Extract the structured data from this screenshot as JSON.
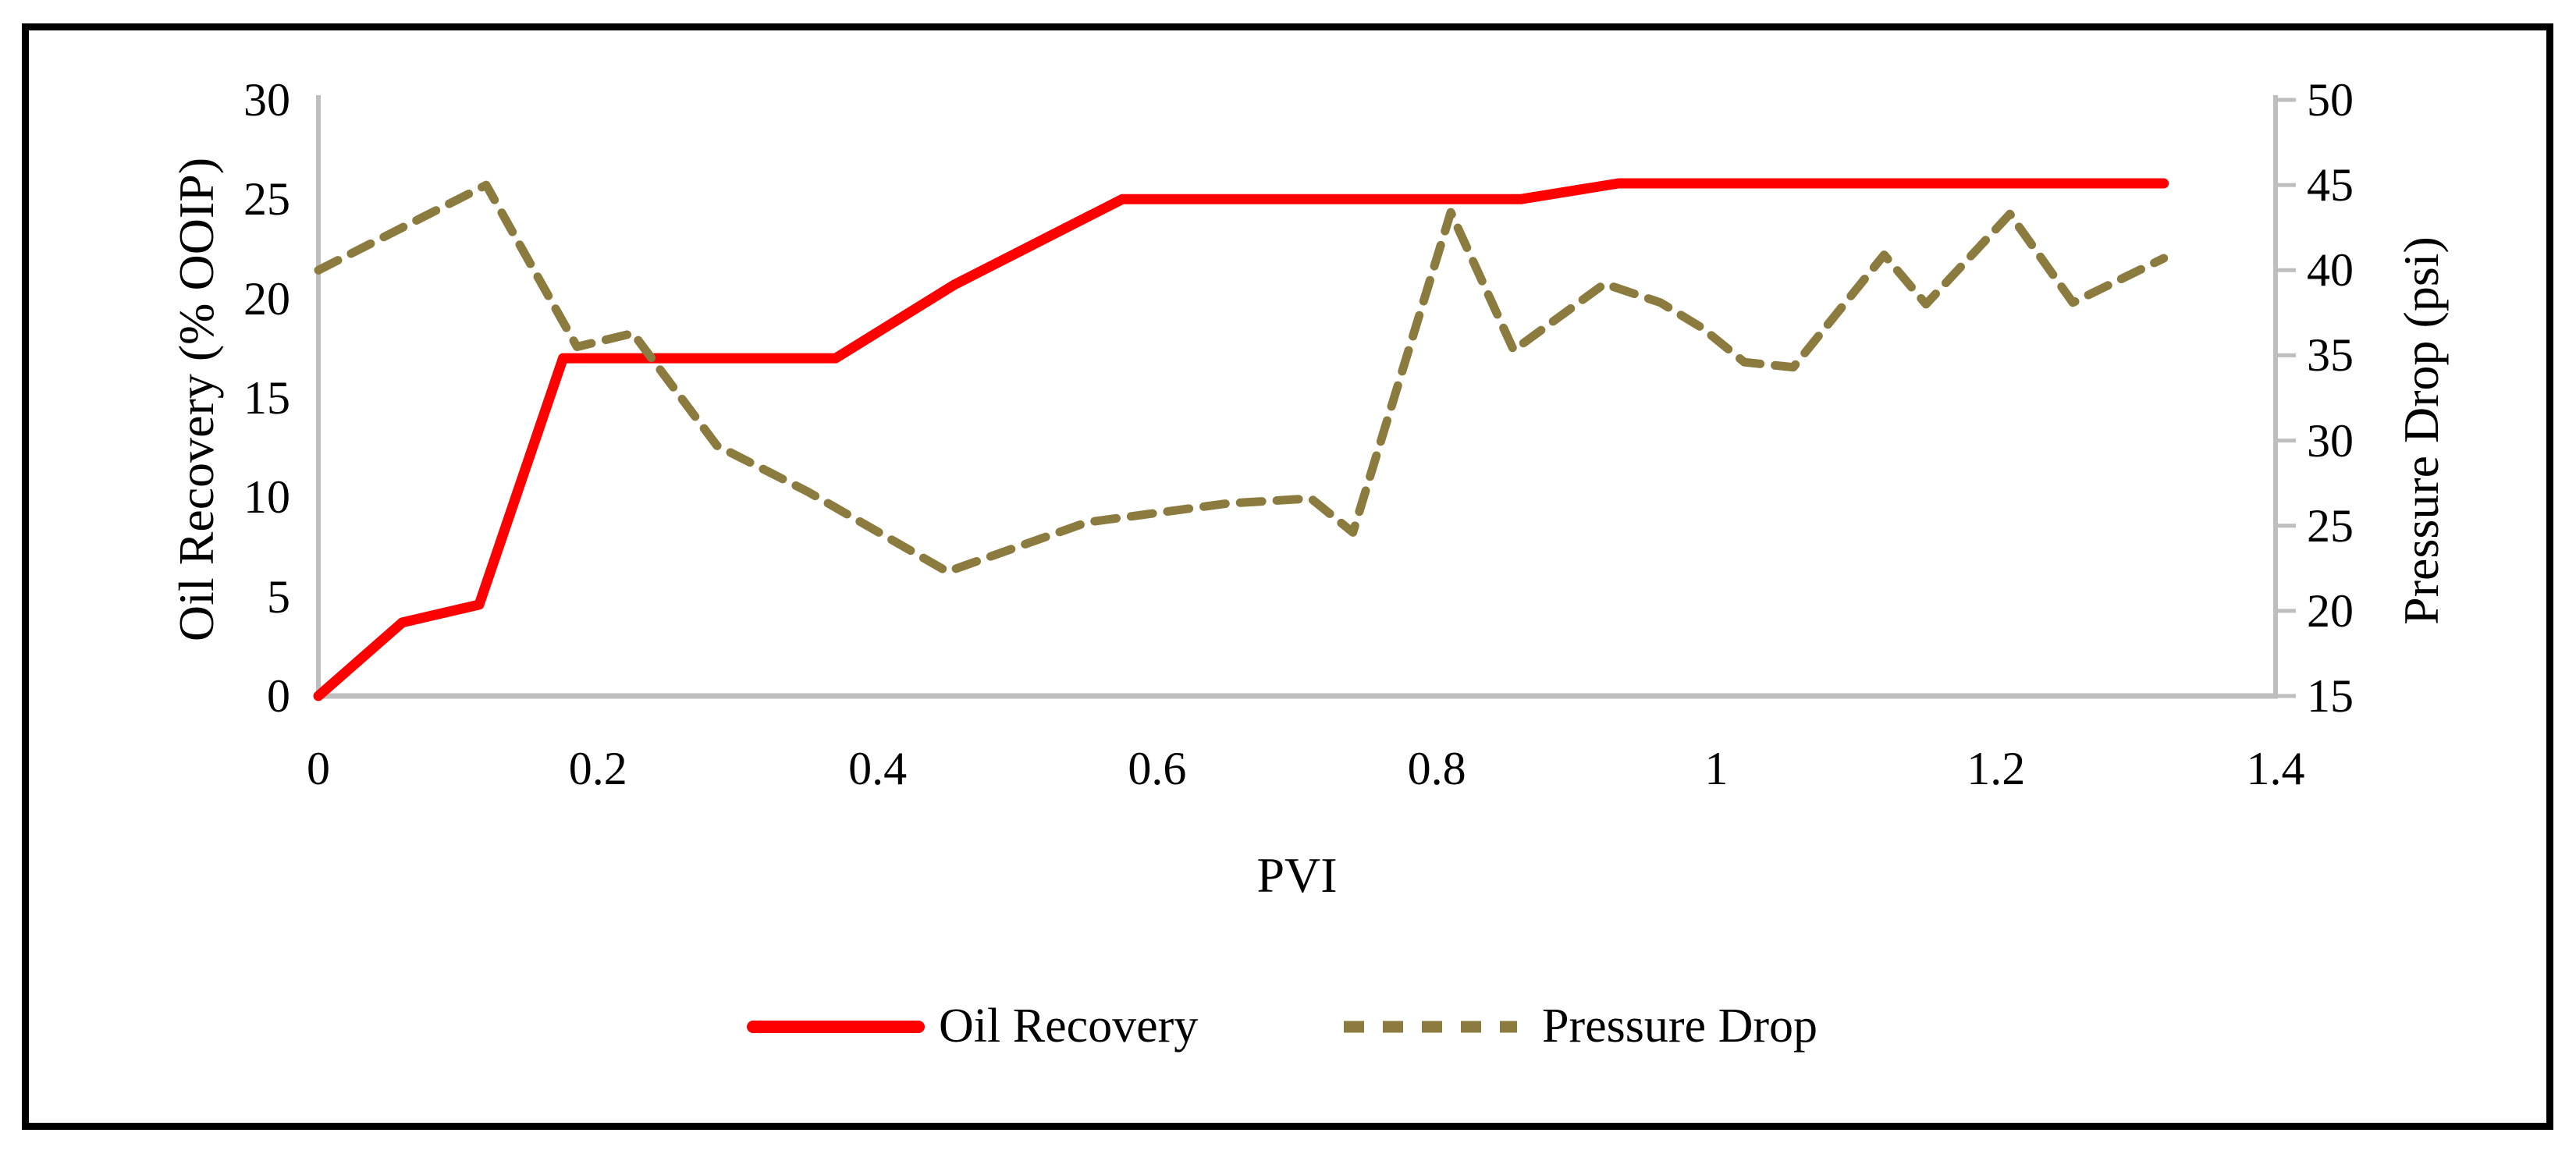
{
  "chart_data": {
    "type": "line",
    "title": "",
    "xlabel": "PVI",
    "ylabel": "Oil Recovery (% OOIP)",
    "ylabel_secondary": "Pressure Drop (psi)",
    "grid": false,
    "legend_position": "bottom-center",
    "background_color": "#FFFFFF",
    "axis_color": "#BEBEBE",
    "frame_color": "#000000",
    "x_axis": {
      "min": 0,
      "max": 1.4,
      "ticks": [
        0,
        0.2,
        0.4,
        0.6,
        0.8,
        1,
        1.2,
        1.4
      ],
      "tick_labels": [
        "0",
        "0.2",
        "0.4",
        "0.6",
        "0.8",
        "1",
        "1.2",
        "1.4"
      ]
    },
    "y_left": {
      "min": 0,
      "max": 30,
      "ticks": [
        0,
        5,
        10,
        15,
        20,
        25,
        30
      ],
      "tick_labels": [
        "0",
        "5",
        "10",
        "15",
        "20",
        "25",
        "30"
      ]
    },
    "y_right": {
      "min": 15,
      "max": 50,
      "ticks": [
        15,
        20,
        25,
        30,
        35,
        40,
        45,
        50
      ],
      "tick_labels": [
        "15",
        "20",
        "25",
        "30",
        "35",
        "40",
        "45",
        "50"
      ]
    },
    "series": [
      {
        "name": "Oil Recovery",
        "axis": "left",
        "line_style": "solid",
        "color": "#FF0000",
        "points": [
          [
            0,
            0
          ],
          [
            0.06,
            3.7
          ],
          [
            0.115,
            4.6
          ],
          [
            0.175,
            17
          ],
          [
            0.37,
            17
          ],
          [
            0.455,
            20.7
          ],
          [
            0.575,
            25
          ],
          [
            0.86,
            25
          ],
          [
            0.93,
            25.8
          ],
          [
            1.32,
            25.8
          ]
        ]
      },
      {
        "name": "Pressure Drop",
        "axis": "right",
        "line_style": "dashed",
        "color": "#8B7B3F",
        "points": [
          [
            0,
            40
          ],
          [
            0.12,
            45
          ],
          [
            0.185,
            35.5
          ],
          [
            0.225,
            36.3
          ],
          [
            0.285,
            29.7
          ],
          [
            0.35,
            27
          ],
          [
            0.45,
            22.3
          ],
          [
            0.55,
            25.2
          ],
          [
            0.65,
            26.3
          ],
          [
            0.71,
            26.6
          ],
          [
            0.74,
            24.6
          ],
          [
            0.81,
            43.4
          ],
          [
            0.855,
            35.3
          ],
          [
            0.92,
            39.2
          ],
          [
            0.96,
            38.1
          ],
          [
            0.99,
            36.6
          ],
          [
            1.02,
            34.6
          ],
          [
            1.055,
            34.3
          ],
          [
            1.12,
            40.9
          ],
          [
            1.15,
            38
          ],
          [
            1.21,
            43.3
          ],
          [
            1.255,
            38.1
          ],
          [
            1.32,
            40.7
          ]
        ]
      }
    ]
  }
}
